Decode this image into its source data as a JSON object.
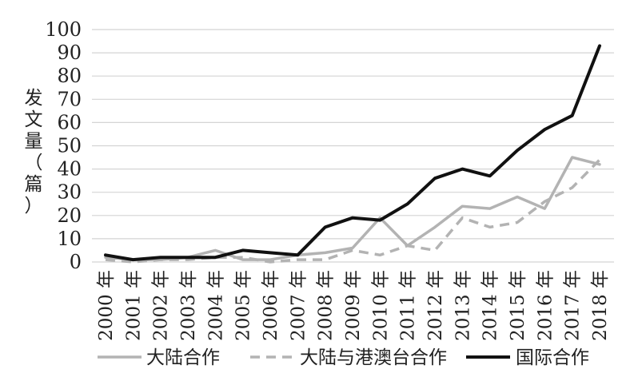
{
  "chart_data": {
    "type": "line",
    "ylabel": "发文量（篇）",
    "ylim": [
      0,
      100
    ],
    "yticks": [
      0,
      10,
      20,
      30,
      40,
      50,
      60,
      70,
      80,
      90,
      100
    ],
    "grid": true,
    "legend_position": "bottom",
    "categories": [
      "2000 年",
      "2001 年",
      "2002 年",
      "2003 年",
      "2004 年",
      "2005 年",
      "2006 年",
      "2007 年",
      "2008 年",
      "2009 年",
      "2010 年",
      "2011 年",
      "2012 年",
      "2013 年",
      "2014 年",
      "2015 年",
      "2016 年",
      "2017 年",
      "2018 年"
    ],
    "series": [
      {
        "name": "大陆合作",
        "color": "#b3b3b3",
        "style": "solid",
        "values": [
          2,
          1,
          1,
          2,
          5,
          1,
          1,
          3,
          4,
          6,
          19,
          7,
          15,
          24,
          23,
          28,
          23,
          45,
          42
        ]
      },
      {
        "name": "大陆与港澳台合作",
        "color": "#b3b3b3",
        "style": "dashed",
        "values": [
          1,
          0,
          1,
          1,
          2,
          2,
          0,
          1,
          1,
          5,
          3,
          7,
          5,
          19,
          15,
          17,
          26,
          32,
          44
        ]
      },
      {
        "name": "国际合作",
        "color": "#111111",
        "style": "solid",
        "values": [
          3,
          1,
          2,
          2,
          2,
          5,
          4,
          3,
          15,
          19,
          18,
          25,
          36,
          40,
          37,
          48,
          57,
          63,
          93
        ]
      }
    ]
  }
}
